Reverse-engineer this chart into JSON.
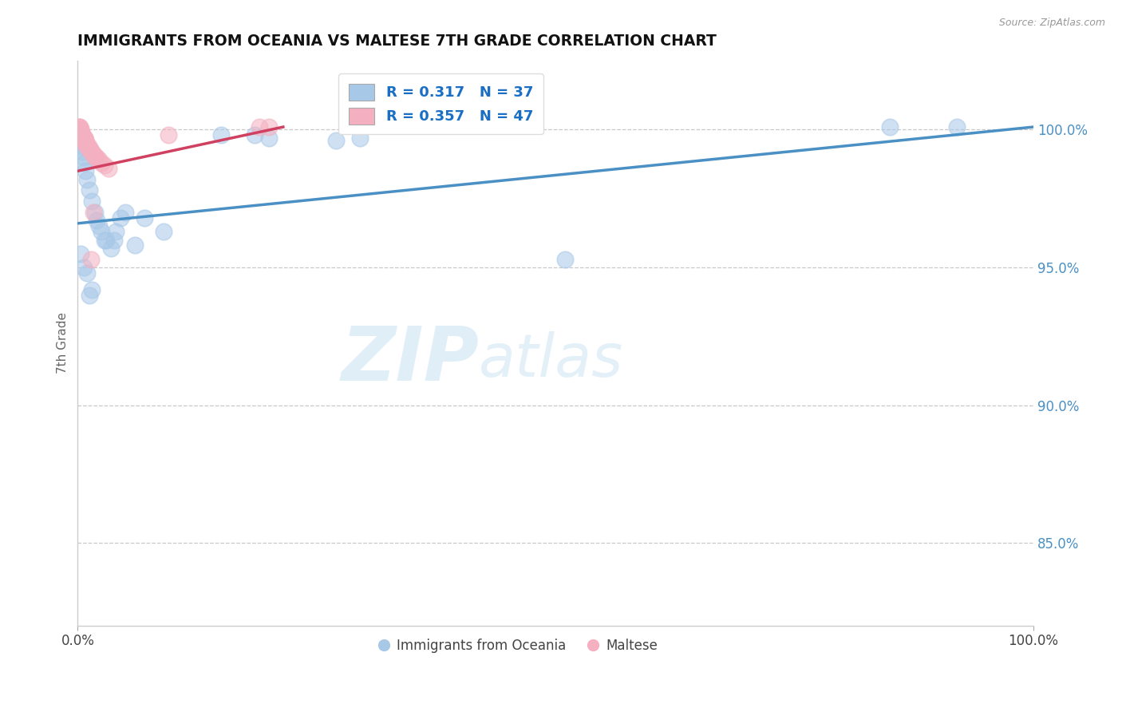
{
  "title": "IMMIGRANTS FROM OCEANIA VS MALTESE 7TH GRADE CORRELATION CHART",
  "source_text": "Source: ZipAtlas.com",
  "ylabel": "7th Grade",
  "xlim": [
    0.0,
    1.0
  ],
  "ylim": [
    0.82,
    1.025
  ],
  "yticks": [
    0.85,
    0.9,
    0.95,
    1.0
  ],
  "ytick_labels": [
    "85.0%",
    "90.0%",
    "95.0%",
    "100.0%"
  ],
  "xtick_labels": [
    "0.0%",
    "100.0%"
  ],
  "xticks": [
    0.0,
    1.0
  ],
  "legend_blue_r": "R = 0.317",
  "legend_blue_n": "N = 37",
  "legend_pink_r": "R = 0.357",
  "legend_pink_n": "N = 47",
  "blue_color": "#a8c8e8",
  "pink_color": "#f4b0c0",
  "blue_line_color": "#4a90c4",
  "pink_line_color": "#d04060",
  "watermark_zip": "ZIP",
  "watermark_atlas": "atlas",
  "blue_scatter_x": [
    0.002,
    0.003,
    0.004,
    0.005,
    0.006,
    0.007,
    0.008,
    0.01,
    0.012,
    0.015,
    0.018,
    0.02,
    0.025,
    0.03,
    0.035,
    0.022,
    0.04,
    0.045,
    0.038,
    0.06,
    0.003,
    0.006,
    0.01,
    0.015,
    0.012,
    0.028,
    0.05,
    0.07,
    0.09,
    0.15,
    0.185,
    0.2,
    0.27,
    0.295,
    0.51,
    0.85,
    0.92
  ],
  "blue_scatter_y": [
    0.998,
    0.996,
    0.994,
    0.992,
    0.99,
    0.988,
    0.985,
    0.982,
    0.978,
    0.974,
    0.97,
    0.967,
    0.963,
    0.96,
    0.957,
    0.965,
    0.963,
    0.968,
    0.96,
    0.958,
    0.955,
    0.95,
    0.948,
    0.942,
    0.94,
    0.96,
    0.97,
    0.968,
    0.963,
    0.998,
    0.998,
    0.997,
    0.996,
    0.997,
    0.953,
    1.001,
    1.001
  ],
  "pink_scatter_x": [
    0.001,
    0.001,
    0.002,
    0.002,
    0.002,
    0.003,
    0.003,
    0.003,
    0.003,
    0.004,
    0.004,
    0.004,
    0.005,
    0.005,
    0.005,
    0.006,
    0.006,
    0.006,
    0.007,
    0.007,
    0.007,
    0.008,
    0.008,
    0.008,
    0.009,
    0.009,
    0.01,
    0.01,
    0.011,
    0.012,
    0.012,
    0.013,
    0.014,
    0.015,
    0.016,
    0.017,
    0.018,
    0.02,
    0.022,
    0.025,
    0.028,
    0.032,
    0.19,
    0.2,
    0.014,
    0.095,
    0.016
  ],
  "pink_scatter_y": [
    1.001,
    1.001,
    1.001,
    1.0,
    1.0,
    1.0,
    1.0,
    0.999,
    0.999,
    0.999,
    0.999,
    0.998,
    0.998,
    0.998,
    0.998,
    0.997,
    0.997,
    0.997,
    0.997,
    0.997,
    0.996,
    0.996,
    0.996,
    0.995,
    0.995,
    0.995,
    0.994,
    0.994,
    0.994,
    0.993,
    0.993,
    0.993,
    0.992,
    0.992,
    0.991,
    0.991,
    0.99,
    0.99,
    0.989,
    0.988,
    0.987,
    0.986,
    1.001,
    1.001,
    0.953,
    0.998,
    0.97
  ],
  "blue_trend_x": [
    0.0,
    1.0
  ],
  "blue_trend_y": [
    0.966,
    1.001
  ],
  "pink_trend_x": [
    0.0,
    0.215
  ],
  "pink_trend_y": [
    0.985,
    1.001
  ],
  "grid_color": "#c8c8c8",
  "background_color": "#ffffff",
  "legend_text_color": "#1a6fc4",
  "ylabel_color": "#666666",
  "ytick_color": "#4a90c4"
}
